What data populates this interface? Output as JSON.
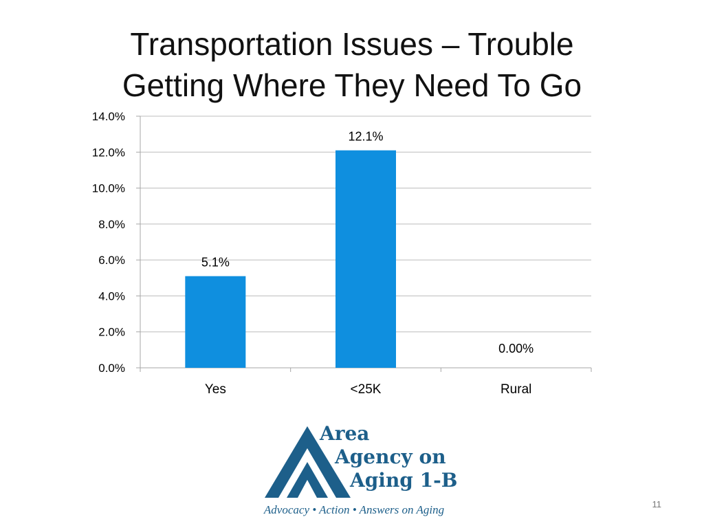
{
  "slide": {
    "title_line1": "Transportation Issues – Trouble",
    "title_line2": "Getting Where They Need To Go",
    "page_number": "11"
  },
  "logo": {
    "line1": "Area",
    "line2": "Agency on",
    "line3": "Aging 1-B",
    "tagline": "Advocacy • Action • Answers on Aging",
    "brand_color": "#1d5f8a"
  },
  "chart_data": {
    "type": "bar",
    "categories": [
      "Yes",
      "<25K",
      "Rural"
    ],
    "values": [
      5.1,
      12.1,
      0.0
    ],
    "data_labels": [
      "5.1%",
      "12.1%",
      "0.00%"
    ],
    "yticks": [
      "0.0%",
      "2.0%",
      "4.0%",
      "6.0%",
      "8.0%",
      "10.0%",
      "12.0%",
      "14.0%"
    ],
    "ylim": [
      0,
      14
    ],
    "grid": true,
    "bar_color": "#0f8fdf"
  }
}
